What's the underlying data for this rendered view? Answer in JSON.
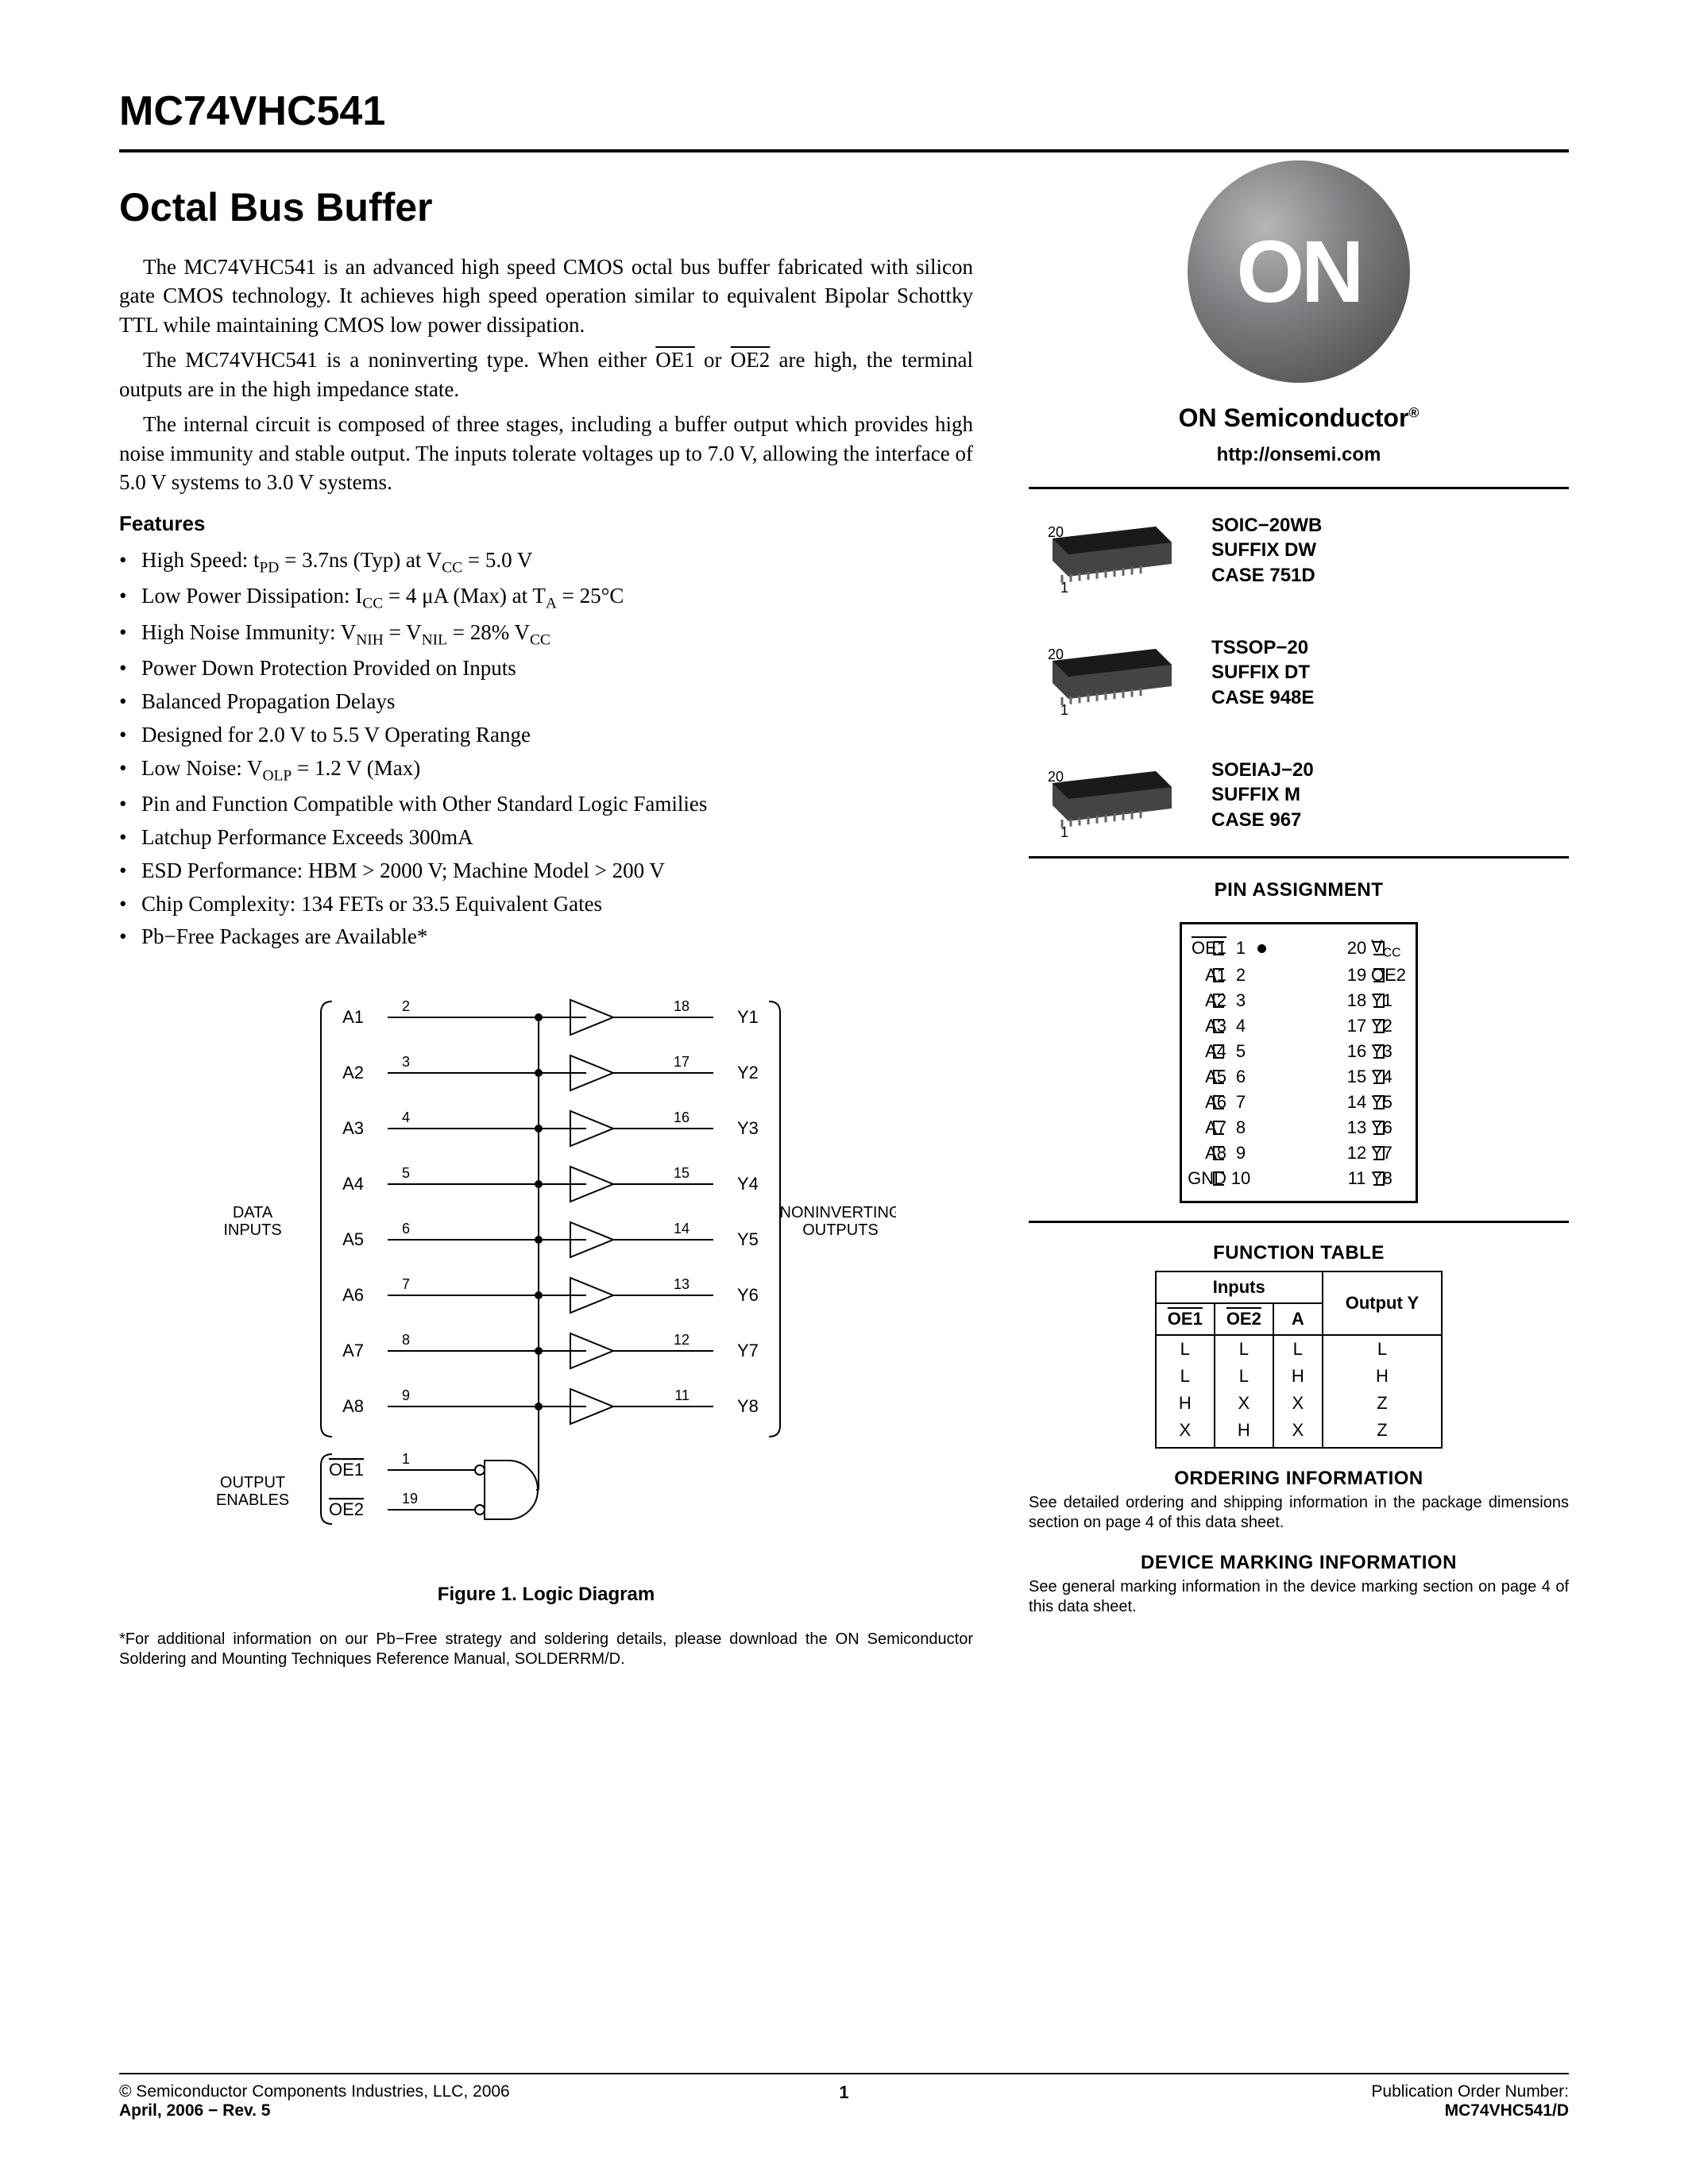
{
  "part_number": "MC74VHC541",
  "title": "Octal Bus Buffer",
  "paragraphs": {
    "p1": "The MC74VHC541 is an advanced high speed CMOS octal bus buffer fabricated with silicon gate CMOS technology. It achieves high speed operation similar to equivalent Bipolar Schottky TTL while maintaining CMOS low power dissipation.",
    "p2_a": "The MC74VHC541 is a noninverting type. When either ",
    "p2_oe1": "OE1",
    "p2_b": " or ",
    "p2_oe2": "OE2",
    "p2_c": " are high, the terminal outputs are in the high impedance state.",
    "p3": "The internal circuit is composed of three stages, including a buffer output which provides high noise immunity and stable output. The inputs tolerate voltages up to 7.0 V, allowing the interface of 5.0 V systems to 3.0 V systems."
  },
  "features_hdr": "Features",
  "features": [
    "High Speed: t<sub>PD</sub> = 3.7ns (Typ) at V<sub>CC</sub> = 5.0 V",
    "Low Power Dissipation: I<sub>CC</sub> = 4 μA (Max) at T<sub>A</sub> = 25°C",
    "High Noise Immunity: V<sub>NIH</sub> = V<sub>NIL</sub> = 28% V<sub>CC</sub>",
    "Power Down Protection Provided on Inputs",
    "Balanced Propagation Delays",
    "Designed for 2.0 V to 5.5 V Operating Range",
    "Low Noise: V<sub>OLP</sub> = 1.2 V (Max)",
    "Pin and Function Compatible with Other Standard Logic Families",
    "Latchup Performance Exceeds 300mA",
    "ESD Performance: HBM > 2000 V; Machine Model > 200 V",
    "Chip Complexity: 134 FETs or 33.5 Equivalent Gates",
    "Pb−Free Packages are Available*"
  ],
  "logo_text": "ON",
  "brand": "ON Semiconductor",
  "url": "http://onsemi.com",
  "packages": [
    {
      "name": "SOIC−20WB",
      "suffix": "SUFFIX DW",
      "case": "CASE 751D"
    },
    {
      "name": "TSSOP−20",
      "suffix": "SUFFIX DT",
      "case": "CASE 948E"
    },
    {
      "name": "SOEIAJ−20",
      "suffix": "SUFFIX M",
      "case": "CASE 967"
    }
  ],
  "pin_hdr": "PIN ASSIGNMENT",
  "pins": {
    "left": [
      "OE1",
      "A1",
      "A2",
      "A3",
      "A4",
      "A5",
      "A6",
      "A7",
      "A8",
      "GND"
    ],
    "right": [
      "V<sub>CC</sub>",
      "OE2",
      "Y1",
      "Y2",
      "Y3",
      "Y4",
      "Y5",
      "Y6",
      "Y7",
      "Y8"
    ],
    "left_overline": [
      true,
      false,
      false,
      false,
      false,
      false,
      false,
      false,
      false,
      false
    ],
    "right_overline": [
      false,
      true,
      false,
      false,
      false,
      false,
      false,
      false,
      false,
      false
    ],
    "left_nums": [
      1,
      2,
      3,
      4,
      5,
      6,
      7,
      8,
      9,
      10
    ],
    "right_nums": [
      20,
      19,
      18,
      17,
      16,
      15,
      14,
      13,
      12,
      11
    ]
  },
  "func_hdr": "FUNCTION TABLE",
  "func_cols": {
    "inputs": "Inputs",
    "oe1": "OE1",
    "oe2": "OE2",
    "a": "A",
    "out": "Output Y"
  },
  "func_rows": [
    [
      "L",
      "L",
      "L",
      "L"
    ],
    [
      "L",
      "L",
      "H",
      "H"
    ],
    [
      "H",
      "X",
      "X",
      "Z"
    ],
    [
      "X",
      "H",
      "X",
      "Z"
    ]
  ],
  "ordering": {
    "hdr": "ORDERING INFORMATION",
    "txt": "See detailed ordering and shipping information in the package dimensions section on page 4 of this data sheet."
  },
  "marking": {
    "hdr": "DEVICE MARKING INFORMATION",
    "txt": "See general marking information in the device marking section on page 4 of this data sheet."
  },
  "logic": {
    "caption": "Figure 1. Logic Diagram",
    "left_label_1": "DATA",
    "left_label_2": "INPUTS",
    "right_label_1": "NONINVERTING",
    "right_label_2": "OUTPUTS",
    "oe_label_1": "OUTPUT",
    "oe_label_2": "ENABLES",
    "oe1": "OE1",
    "oe2": "OE2",
    "inputs": [
      {
        "l": "A1",
        "p": "2"
      },
      {
        "l": "A2",
        "p": "3"
      },
      {
        "l": "A3",
        "p": "4"
      },
      {
        "l": "A4",
        "p": "5"
      },
      {
        "l": "A5",
        "p": "6"
      },
      {
        "l": "A6",
        "p": "7"
      },
      {
        "l": "A7",
        "p": "8"
      },
      {
        "l": "A8",
        "p": "9"
      }
    ],
    "outputs": [
      {
        "l": "Y1",
        "p": "18"
      },
      {
        "l": "Y2",
        "p": "17"
      },
      {
        "l": "Y3",
        "p": "16"
      },
      {
        "l": "Y4",
        "p": "15"
      },
      {
        "l": "Y5",
        "p": "14"
      },
      {
        "l": "Y6",
        "p": "13"
      },
      {
        "l": "Y7",
        "p": "12"
      },
      {
        "l": "Y8",
        "p": "11"
      }
    ],
    "oe1_pin": "1",
    "oe2_pin": "19"
  },
  "footnote": "*For additional information on our Pb−Free strategy and soldering details, please download the ON Semiconductor Soldering and Mounting Techniques Reference Manual, SOLDERRM/D.",
  "footer": {
    "copyright": "© Semiconductor Components Industries, LLC, 2006",
    "date": "April, 2006 − Rev. 5",
    "page": "1",
    "pub1": "Publication Order Number:",
    "pub2": "MC74VHC541/D"
  },
  "colors": {
    "page_bg": "#ffffff",
    "text": "#000000",
    "logo_grad_light": "#b5b6b8",
    "logo_grad_dark": "#3e3f41",
    "chip_body": "#1a1a1a",
    "chip_side": "#444444"
  }
}
